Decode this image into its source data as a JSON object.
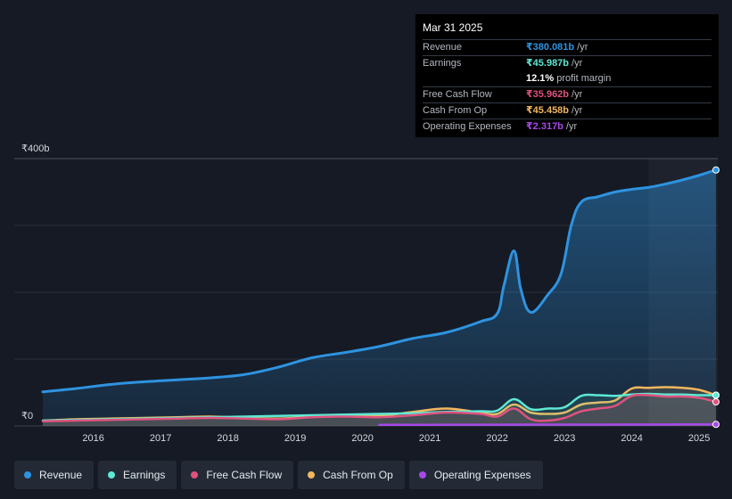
{
  "tooltip": {
    "date": "Mar 31 2025",
    "rows": [
      {
        "label": "Revenue",
        "value": "₹380.081b",
        "unit": "/yr",
        "color": "#2e93e0"
      },
      {
        "label": "Earnings",
        "value": "₹45.987b",
        "unit": "/yr",
        "color": "#5ee8d4"
      },
      {
        "label": "",
        "value": "12.1%",
        "unit": "profit margin",
        "color": "#ffffff"
      },
      {
        "label": "Free Cash Flow",
        "value": "₹35.962b",
        "unit": "/yr",
        "color": "#e0527e"
      },
      {
        "label": "Cash From Op",
        "value": "₹45.458b",
        "unit": "/yr",
        "color": "#f2b75e"
      },
      {
        "label": "Operating Expenses",
        "value": "₹2.317b",
        "unit": "/yr",
        "color": "#a748e8"
      }
    ]
  },
  "legend": [
    {
      "label": "Revenue",
      "color": "#2e93e0"
    },
    {
      "label": "Earnings",
      "color": "#5ee8d4"
    },
    {
      "label": "Free Cash Flow",
      "color": "#e0527e"
    },
    {
      "label": "Cash From Op",
      "color": "#f2b75e"
    },
    {
      "label": "Operating Expenses",
      "color": "#a748e8"
    }
  ],
  "chart_data": {
    "type": "line",
    "y_top_label": "₹400b",
    "y_bottom_label": "₹0",
    "ylim": [
      0,
      400
    ],
    "xlim": [
      2015.25,
      2025.25
    ],
    "x_ticks": [
      "2016",
      "2017",
      "2018",
      "2019",
      "2020",
      "2021",
      "2022",
      "2023",
      "2024",
      "2025"
    ],
    "grid": true,
    "highlight_from": 2024.25,
    "series": [
      {
        "name": "Revenue",
        "color": "#2e93e0",
        "x": [
          2015.25,
          2015.75,
          2016.25,
          2016.75,
          2017.25,
          2017.75,
          2018.25,
          2018.75,
          2019.25,
          2019.75,
          2020.25,
          2020.75,
          2021.25,
          2021.75,
          2022.0,
          2022.1,
          2022.25,
          2022.35,
          2022.5,
          2022.75,
          2022.95,
          2023.1,
          2023.25,
          2023.5,
          2023.75,
          2024.0,
          2024.25,
          2024.5,
          2024.75,
          2025.0,
          2025.25
        ],
        "y": [
          51,
          56,
          62,
          66,
          69,
          72,
          77,
          88,
          102,
          110,
          119,
          131,
          140,
          156,
          168,
          210,
          262,
          205,
          170,
          196,
          228,
          300,
          335,
          343,
          350,
          354,
          357,
          362,
          368,
          375,
          383
        ]
      },
      {
        "name": "Earnings",
        "color": "#5ee8d4",
        "x": [
          2015.25,
          2015.75,
          2016.25,
          2016.75,
          2017.25,
          2017.75,
          2018.25,
          2018.75,
          2019.25,
          2019.75,
          2020.25,
          2020.75,
          2021.25,
          2021.75,
          2022.0,
          2022.25,
          2022.5,
          2022.75,
          2023.0,
          2023.25,
          2023.5,
          2023.75,
          2024.0,
          2024.25,
          2024.5,
          2024.75,
          2025.0,
          2025.25
        ],
        "y": [
          8,
          9,
          10,
          11,
          12,
          13,
          14,
          15,
          16,
          17,
          18,
          19,
          21,
          22,
          23,
          40,
          25,
          26,
          28,
          45,
          46,
          45,
          47,
          48,
          47,
          47,
          46,
          46
        ]
      },
      {
        "name": "Free Cash Flow",
        "color": "#e0527e",
        "x": [
          2015.25,
          2015.75,
          2016.25,
          2016.75,
          2017.25,
          2017.75,
          2018.25,
          2018.75,
          2019.25,
          2019.75,
          2020.25,
          2020.75,
          2021.25,
          2021.75,
          2022.0,
          2022.25,
          2022.5,
          2022.75,
          2023.0,
          2023.25,
          2023.5,
          2023.75,
          2024.0,
          2024.25,
          2024.5,
          2024.75,
          2025.0,
          2025.25
        ],
        "y": [
          7,
          8,
          9,
          10,
          11,
          12,
          11,
          10,
          13,
          14,
          13,
          16,
          20,
          18,
          14,
          26,
          10,
          8,
          12,
          22,
          26,
          30,
          45,
          46,
          44,
          44,
          42,
          36
        ]
      },
      {
        "name": "Cash From Op",
        "color": "#f2b75e",
        "x": [
          2015.25,
          2015.75,
          2016.25,
          2016.75,
          2017.25,
          2017.75,
          2018.25,
          2018.75,
          2019.25,
          2019.75,
          2020.25,
          2020.75,
          2021.25,
          2021.75,
          2022.0,
          2022.25,
          2022.5,
          2022.75,
          2023.0,
          2023.25,
          2023.5,
          2023.75,
          2024.0,
          2024.25,
          2024.5,
          2024.75,
          2025.0,
          2025.25
        ],
        "y": [
          8,
          10,
          11,
          12,
          13,
          14,
          12,
          11,
          14,
          16,
          15,
          21,
          26,
          20,
          18,
          32,
          20,
          18,
          20,
          32,
          35,
          38,
          56,
          57,
          58,
          57,
          54,
          46
        ]
      },
      {
        "name": "Operating Expenses",
        "color": "#a748e8",
        "x": [
          2020.25,
          2021.0,
          2022.0,
          2023.0,
          2024.0,
          2025.25
        ],
        "y": [
          1.6,
          1.7,
          1.9,
          2.0,
          2.2,
          2.3
        ]
      }
    ]
  }
}
